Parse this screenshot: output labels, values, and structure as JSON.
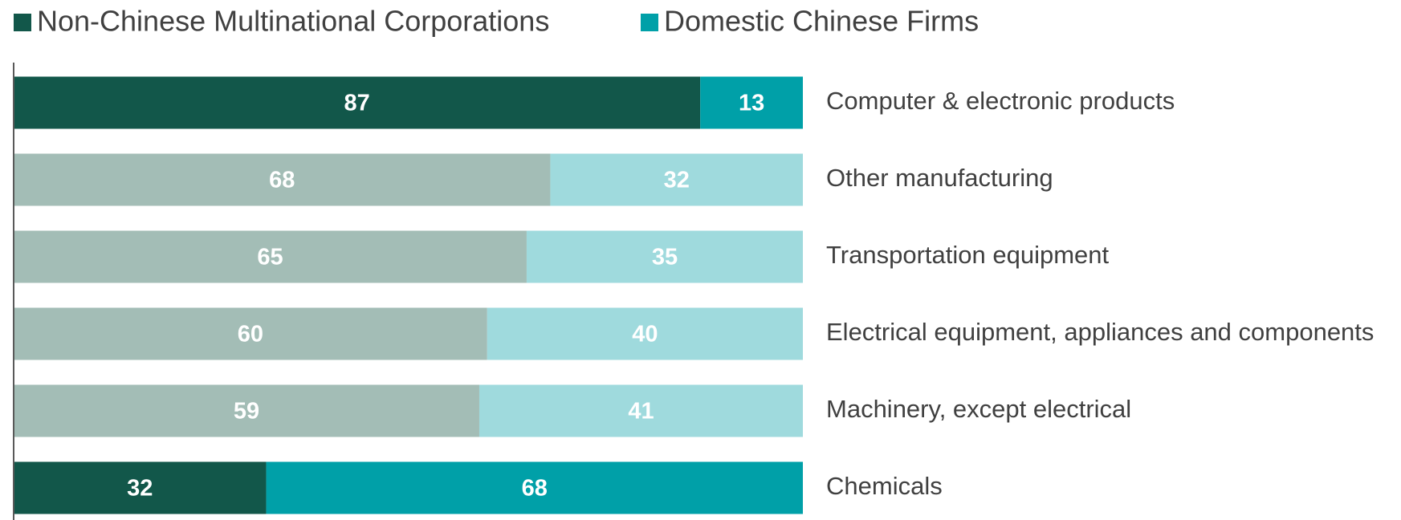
{
  "chart_data": {
    "type": "stacked_barh",
    "categories": [
      "Computer & electronic products",
      "Other manufacturing",
      "Transportation equipment",
      "Electrical equipment, appliances and components",
      "Machinery, except electrical",
      "Chemicals"
    ],
    "series": [
      {
        "name": "Non-Chinese Multinational Corporations",
        "color": "#12574a",
        "point_colors": [
          "#12574a",
          "#a3bdb6",
          "#a3bdb6",
          "#a3bdb6",
          "#a3bdb6",
          "#12574a"
        ],
        "values": [
          87,
          68,
          65,
          60,
          59,
          32
        ]
      },
      {
        "name": "Domestic Chinese Firms",
        "color": "#00a0a8",
        "point_colors": [
          "#00a0a8",
          "#9fdadd",
          "#9fdadd",
          "#9fdadd",
          "#9fdadd",
          "#00a0a8"
        ],
        "values": [
          13,
          32,
          35,
          40,
          41,
          68
        ]
      }
    ],
    "xlim": [
      0,
      100
    ],
    "legend": "top-left"
  }
}
